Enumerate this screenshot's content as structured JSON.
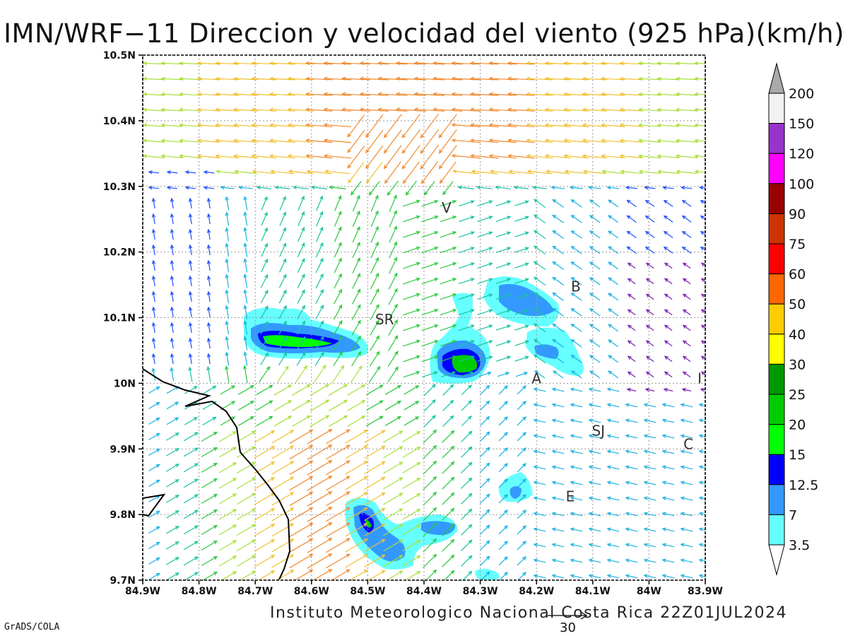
{
  "title": "IMN/WRF−11 Direccion y velocidad del viento (925 hPa)(km/h)",
  "credit": "Instituto Meteorologico Nacional Costa Rica 22Z01JUL2024",
  "software": "GrADS/COLA",
  "map": {
    "lat_range": [
      9.7,
      10.5
    ],
    "lon_range": [
      -84.9,
      -83.9
    ],
    "lat_ticks": [
      {
        "value": 10.5,
        "label": "10.5N"
      },
      {
        "value": 10.4,
        "label": "10.4N"
      },
      {
        "value": 10.3,
        "label": "10.3N"
      },
      {
        "value": 10.2,
        "label": "10.2N"
      },
      {
        "value": 10.1,
        "label": "10.1N"
      },
      {
        "value": 10.0,
        "label": "10N"
      },
      {
        "value": 9.9,
        "label": "9.9N"
      },
      {
        "value": 9.8,
        "label": "9.8N"
      },
      {
        "value": 9.7,
        "label": "9.7N"
      }
    ],
    "lon_ticks": [
      {
        "value": -84.9,
        "label": "84.9W"
      },
      {
        "value": -84.8,
        "label": "84.8W"
      },
      {
        "value": -84.7,
        "label": "84.7W"
      },
      {
        "value": -84.6,
        "label": "84.6W"
      },
      {
        "value": -84.5,
        "label": "84.5W"
      },
      {
        "value": -84.4,
        "label": "84.4W"
      },
      {
        "value": -84.3,
        "label": "84.3W"
      },
      {
        "value": -84.2,
        "label": "84.2W"
      },
      {
        "value": -84.1,
        "label": "84.1W"
      },
      {
        "value": -84.0,
        "label": "84W"
      },
      {
        "value": -83.9,
        "label": "83.9W"
      }
    ],
    "places": [
      {
        "label": "V",
        "lat": 10.26,
        "lon": -84.36
      },
      {
        "label": "B",
        "lat": 10.14,
        "lon": -84.13
      },
      {
        "label": "SR",
        "lat": 10.09,
        "lon": -84.47
      },
      {
        "label": "A",
        "lat": 10.0,
        "lon": -84.2
      },
      {
        "label": "SJ",
        "lat": 9.92,
        "lon": -84.09
      },
      {
        "label": "C",
        "lat": 9.9,
        "lon": -83.93
      },
      {
        "label": "E",
        "lat": 9.82,
        "lon": -84.14
      },
      {
        "label": "I",
        "lat": 10.0,
        "lon": -83.91
      }
    ]
  },
  "colorbar": {
    "levels": [
      "3.5",
      "7",
      "12.5",
      "15",
      "20",
      "25",
      "30",
      "40",
      "50",
      "60",
      "75",
      "90",
      "100",
      "120",
      "150",
      "200"
    ],
    "colors": [
      "#66ffff",
      "#3399ff",
      "#0000ff",
      "#00ff00",
      "#00cc00",
      "#009900",
      "#ffff00",
      "#ffcc00",
      "#ff6600",
      "#ff0000",
      "#cc3300",
      "#990000",
      "#ff00ff",
      "#9933cc",
      "#f2f2f2",
      "#aaaaaa"
    ]
  },
  "reference_vector": {
    "label": "30",
    "speed_kmh": 30
  },
  "wind_colors": {
    "calm": "#7b1fb0",
    "light": "#1e4fff",
    "moderate": "#18b0e0",
    "fresh": "#17c2a0",
    "strong": "#28c83c",
    "very_strong": "#a8e03a",
    "high": "#f0c030",
    "higher": "#f08a30",
    "extreme": "#e0304a"
  }
}
